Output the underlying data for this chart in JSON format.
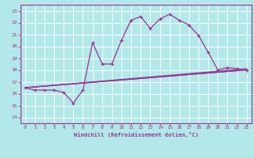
{
  "xlabel": "Windchill (Refroidissement éolien,°C)",
  "bg_color": "#b3e8e8",
  "line_color": "#993399",
  "grid_color": "#ffffff",
  "xlim": [
    -0.5,
    23.5
  ],
  "ylim": [
    13.5,
    23.5
  ],
  "xticks": [
    0,
    1,
    2,
    3,
    4,
    5,
    6,
    7,
    8,
    9,
    10,
    11,
    12,
    13,
    14,
    15,
    16,
    17,
    18,
    19,
    20,
    21,
    22,
    23
  ],
  "yticks": [
    14,
    15,
    16,
    17,
    18,
    19,
    20,
    21,
    22,
    23
  ],
  "line1_x": [
    0,
    1,
    2,
    3,
    4,
    5,
    6,
    7,
    8,
    9,
    10,
    11,
    12,
    13,
    14,
    15,
    16,
    17,
    18,
    19,
    20,
    21,
    22,
    23
  ],
  "line1_y": [
    16.5,
    16.3,
    16.3,
    16.3,
    16.1,
    15.2,
    16.3,
    20.3,
    18.5,
    18.5,
    20.5,
    22.2,
    22.5,
    21.5,
    22.3,
    22.7,
    22.2,
    21.8,
    20.9,
    19.5,
    18.0,
    18.2,
    18.1,
    18.0
  ],
  "straight_lines": [
    {
      "x": [
        0,
        23
      ],
      "y": [
        16.5,
        18.0
      ]
    },
    {
      "x": [
        0,
        23
      ],
      "y": [
        16.5,
        18.0
      ]
    },
    {
      "x": [
        0,
        23
      ],
      "y": [
        16.5,
        18.0
      ]
    }
  ]
}
